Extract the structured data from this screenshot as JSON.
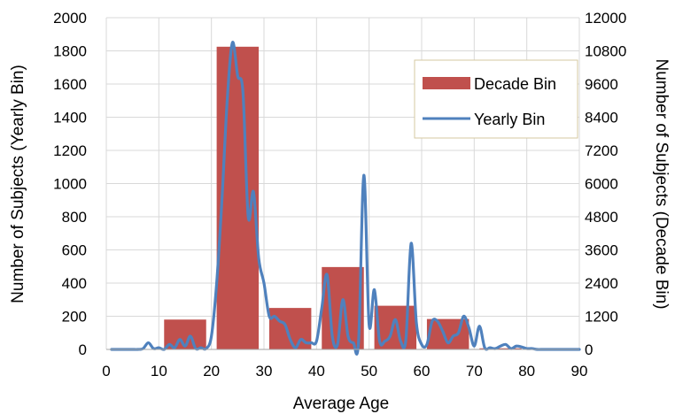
{
  "chart_data": {
    "type": "bar+line",
    "title": "",
    "xlabel": "Average Age",
    "ylabel_left": "Number of Subjects (Yearly Bin)",
    "ylabel_right": "Number of Subjects (Decade Bin)",
    "xlim": [
      0,
      90
    ],
    "ylim_left": [
      0,
      2000
    ],
    "ylim_right": [
      0,
      12000
    ],
    "x_ticks": [
      "0",
      "10",
      "20",
      "30",
      "40",
      "50",
      "60",
      "70",
      "80",
      "90"
    ],
    "y_left_ticks": [
      "0",
      "200",
      "400",
      "600",
      "800",
      "1000",
      "1200",
      "1400",
      "1600",
      "1800",
      "2000"
    ],
    "y_right_ticks": [
      "0",
      "1200",
      "2400",
      "3600",
      "4800",
      "6000",
      "7200",
      "8400",
      "9600",
      "10800",
      "12000"
    ],
    "grid": true,
    "legend_position": "top-right",
    "colors": {
      "bars": "#c0504d",
      "line": "#4f81bd",
      "legend_border": "#d6c8a0"
    },
    "bars": {
      "name": "Decade Bin",
      "axis": "right",
      "bins": [
        {
          "x_start": 11,
          "x_end": 19,
          "value": 1080
        },
        {
          "x_start": 21,
          "x_end": 29,
          "value": 10950
        },
        {
          "x_start": 31,
          "x_end": 39,
          "value": 1500
        },
        {
          "x_start": 41,
          "x_end": 49,
          "value": 2980
        },
        {
          "x_start": 51,
          "x_end": 59,
          "value": 1580
        },
        {
          "x_start": 61,
          "x_end": 69,
          "value": 1100
        },
        {
          "x_start": 71,
          "x_end": 79,
          "value": 40
        }
      ]
    },
    "line": {
      "name": "Yearly Bin",
      "axis": "left",
      "points": [
        [
          1,
          0
        ],
        [
          2,
          0
        ],
        [
          3,
          0
        ],
        [
          4,
          0
        ],
        [
          5,
          0
        ],
        [
          6,
          0
        ],
        [
          7,
          5
        ],
        [
          8,
          40
        ],
        [
          9,
          5
        ],
        [
          10,
          10
        ],
        [
          11,
          0
        ],
        [
          12,
          30
        ],
        [
          13,
          10
        ],
        [
          14,
          60
        ],
        [
          15,
          20
        ],
        [
          16,
          80
        ],
        [
          17,
          5
        ],
        [
          18,
          10
        ],
        [
          19,
          5
        ],
        [
          20,
          80
        ],
        [
          21,
          400
        ],
        [
          22,
          900
        ],
        [
          23,
          1500
        ],
        [
          24,
          1850
        ],
        [
          25,
          1650
        ],
        [
          26,
          1550
        ],
        [
          27,
          800
        ],
        [
          28,
          950
        ],
        [
          29,
          550
        ],
        [
          30,
          400
        ],
        [
          31,
          200
        ],
        [
          32,
          200
        ],
        [
          33,
          170
        ],
        [
          34,
          150
        ],
        [
          35,
          60
        ],
        [
          36,
          10
        ],
        [
          37,
          60
        ],
        [
          38,
          40
        ],
        [
          39,
          40
        ],
        [
          40,
          50
        ],
        [
          41,
          250
        ],
        [
          42,
          450
        ],
        [
          43,
          80
        ],
        [
          44,
          30
        ],
        [
          45,
          300
        ],
        [
          46,
          80
        ],
        [
          47,
          40
        ],
        [
          48,
          50
        ],
        [
          49,
          1050
        ],
        [
          50,
          150
        ],
        [
          51,
          360
        ],
        [
          52,
          50
        ],
        [
          53,
          50
        ],
        [
          54,
          80
        ],
        [
          55,
          180
        ],
        [
          56,
          50
        ],
        [
          57,
          60
        ],
        [
          58,
          640
        ],
        [
          59,
          160
        ],
        [
          60,
          30
        ],
        [
          61,
          30
        ],
        [
          62,
          170
        ],
        [
          63,
          170
        ],
        [
          64,
          110
        ],
        [
          65,
          40
        ],
        [
          66,
          80
        ],
        [
          67,
          100
        ],
        [
          68,
          200
        ],
        [
          69,
          130
        ],
        [
          70,
          20
        ],
        [
          71,
          140
        ],
        [
          72,
          10
        ],
        [
          73,
          10
        ],
        [
          74,
          5
        ],
        [
          75,
          20
        ],
        [
          76,
          30
        ],
        [
          77,
          5
        ],
        [
          78,
          20
        ],
        [
          79,
          15
        ],
        [
          80,
          5
        ],
        [
          81,
          5
        ],
        [
          82,
          0
        ],
        [
          83,
          0
        ],
        [
          84,
          0
        ],
        [
          85,
          0
        ],
        [
          86,
          0
        ],
        [
          87,
          0
        ],
        [
          88,
          0
        ],
        [
          89,
          0
        ],
        [
          90,
          0
        ]
      ]
    }
  }
}
